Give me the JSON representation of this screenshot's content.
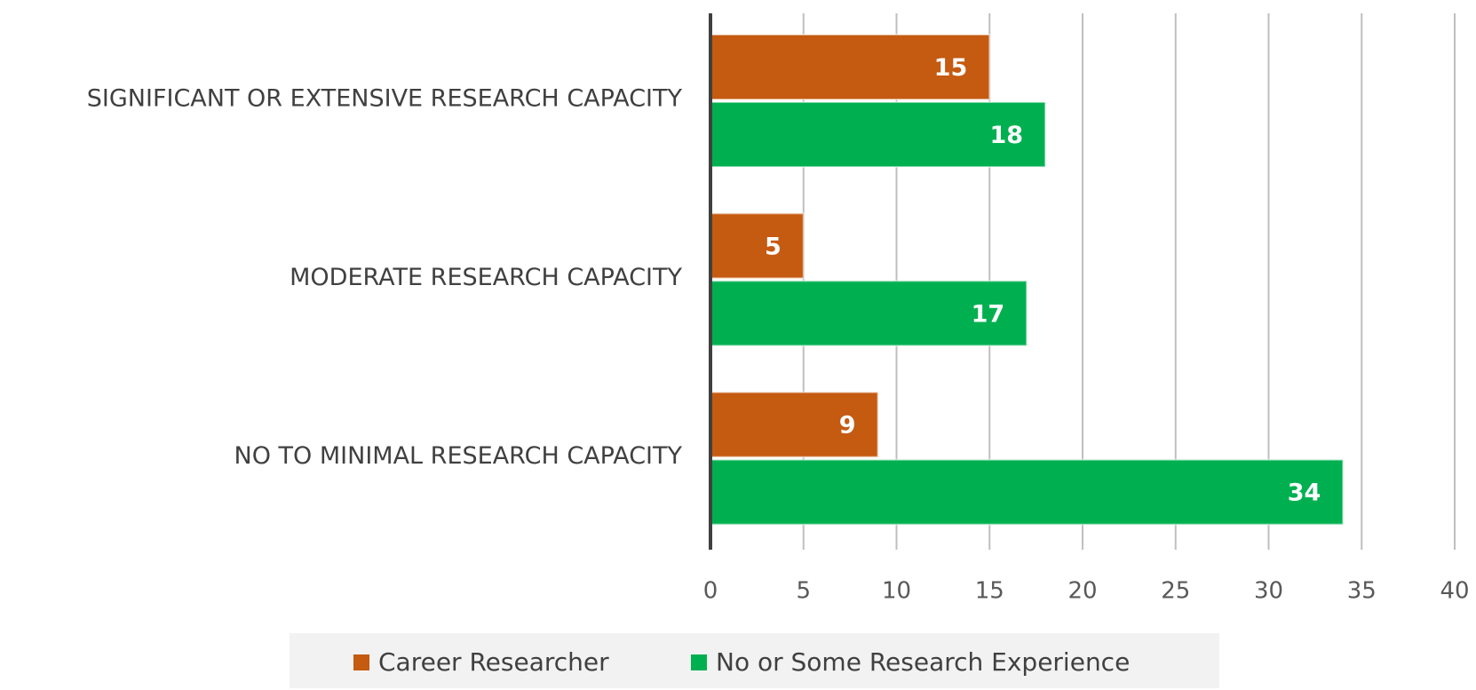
{
  "chart_data": {
    "type": "bar",
    "orientation": "horizontal",
    "categories": [
      "SIGNIFICANT OR EXTENSIVE RESEARCH CAPACITY",
      "MODERATE RESEARCH CAPACITY",
      "NO TO MINIMAL RESEARCH CAPACITY"
    ],
    "series": [
      {
        "name": "Career Researcher",
        "color": "#c55a11",
        "values": [
          15,
          5,
          9
        ]
      },
      {
        "name": "No or Some Research Experience",
        "color": "#00b050",
        "values": [
          18,
          17,
          34
        ]
      }
    ],
    "xlim": [
      0,
      40
    ],
    "xticks": [
      0,
      5,
      10,
      15,
      20,
      25,
      30,
      35,
      40
    ],
    "grid": true,
    "legend": "bottom"
  }
}
